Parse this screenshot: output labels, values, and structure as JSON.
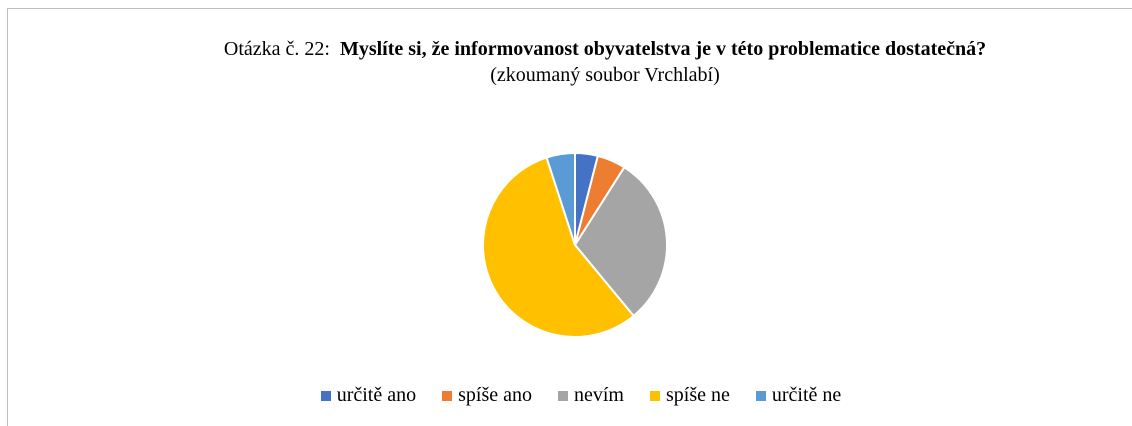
{
  "chart_data": {
    "type": "pie",
    "title_label": "Otázka č. 22:",
    "title": "Myslíte si, že informovanost obyvatelstva je v této problematice dostatečná?",
    "subtitle": "(zkoumaný soubor Vrchlabí)",
    "categories": [
      "určitě ano",
      "spíše ano",
      "nevím",
      "spíše ne",
      "určitě ne"
    ],
    "values": [
      4,
      5,
      30,
      56,
      5
    ],
    "colors": [
      "#4472c4",
      "#ed7d31",
      "#a5a5a5",
      "#ffc000",
      "#5b9bd5"
    ],
    "legend": "bottom"
  }
}
